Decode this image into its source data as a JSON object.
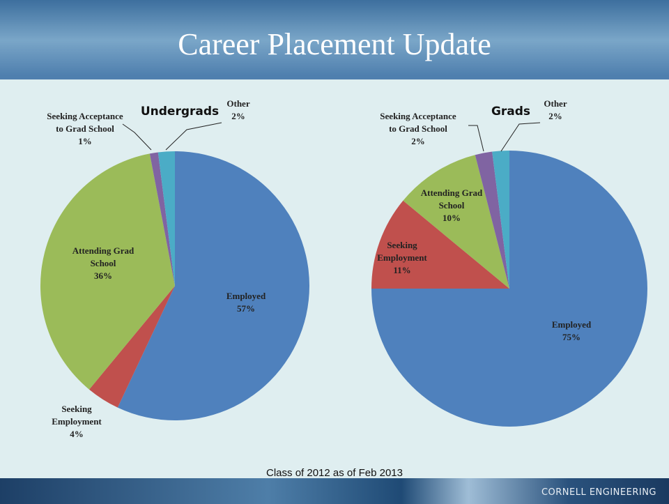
{
  "title": "Career Placement Update",
  "chart_data": [
    {
      "type": "pie",
      "title": "Undergrads",
      "categories": [
        "Employed",
        "Seeking Employment",
        "Attending Grad School",
        "Seeking Acceptance to Grad School",
        "Other"
      ],
      "values": [
        57,
        4,
        36,
        1,
        2
      ],
      "value_labels": [
        "57%",
        "4%",
        "36%",
        "1%",
        "2%"
      ],
      "colors": [
        "#4f81bd",
        "#c0504d",
        "#9bbb59",
        "#8064a2",
        "#4bacc6"
      ]
    },
    {
      "type": "pie",
      "title": "Grads",
      "categories": [
        "Employed",
        "Seeking Employment",
        "Attending Grad School",
        "Seeking Acceptance to Grad School",
        "Other"
      ],
      "values": [
        75,
        11,
        10,
        2,
        2
      ],
      "value_labels": [
        "75%",
        "11%",
        "10%",
        "2%",
        "2%"
      ],
      "colors": [
        "#4f81bd",
        "#c0504d",
        "#9bbb59",
        "#8064a2",
        "#4bacc6"
      ]
    }
  ],
  "footnote": "Class of 2012 as of Feb 2013",
  "brand": "CORNELL ENGINEERING"
}
